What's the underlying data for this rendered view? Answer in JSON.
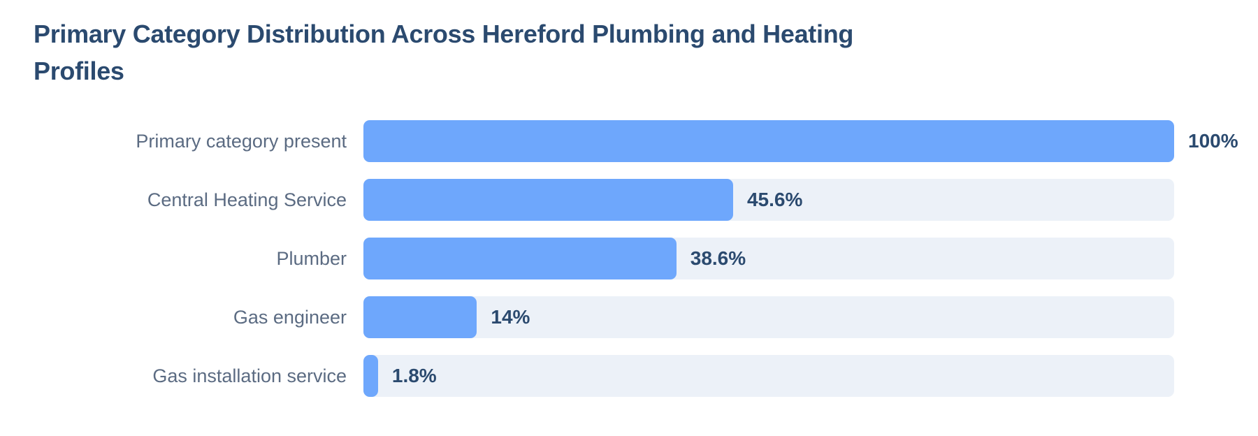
{
  "chart_data": {
    "type": "bar",
    "orientation": "horizontal",
    "title": "Primary Category Distribution Across Hereford Plumbing and Heating Profiles",
    "categories": [
      "Primary category present",
      "Central Heating Service",
      "Plumber",
      "Gas engineer",
      "Gas installation service"
    ],
    "values": [
      100,
      45.6,
      38.6,
      14,
      1.8
    ],
    "value_labels": [
      "100%",
      "45.6%",
      "38.6%",
      "14%",
      "1.8%"
    ],
    "xlim": [
      0,
      100
    ],
    "grid": false,
    "legend": "none",
    "colors": {
      "bar": "#6ea7fc",
      "track": "#ecf1f8",
      "title": "#2b4a6f",
      "label": "#5b6b82",
      "value": "#2b4a6f"
    }
  }
}
